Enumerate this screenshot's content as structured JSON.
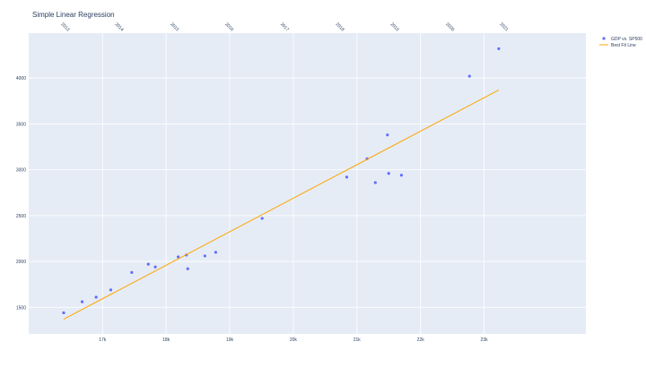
{
  "chart_data": {
    "type": "scatter",
    "title": "Simple Linear Regression",
    "xlabel": "",
    "ylabel": "",
    "x_ticks": [
      "17k",
      "18k",
      "19k",
      "20k",
      "21k",
      "22k",
      "23k"
    ],
    "x_tick_values": [
      17000,
      18000,
      19000,
      20000,
      21000,
      22000,
      23000
    ],
    "y_ticks": [
      "1500",
      "2000",
      "2500",
      "3000",
      "3500",
      "4000"
    ],
    "y_tick_values": [
      1500,
      2000,
      2500,
      3000,
      3500,
      4000
    ],
    "top_axis_ticks": [
      "2013",
      "2014",
      "2015",
      "2016",
      "2017",
      "2018",
      "2019",
      "2020",
      "2021"
    ],
    "top_axis_tick_values": [
      16400,
      17250,
      18120,
      18980,
      19850,
      20720,
      21580,
      22450,
      23300
    ],
    "xlim": [
      15840,
      24600
    ],
    "ylim": [
      1210,
      4490
    ],
    "grid": true,
    "legend_position": "top-right",
    "series": [
      {
        "name": "GDP vs. SP500",
        "type": "scatter",
        "color": "#636efa",
        "x": [
          16390,
          16680,
          16900,
          17130,
          17460,
          17720,
          17830,
          18190,
          18320,
          18340,
          18610,
          18780,
          19510,
          20840,
          21160,
          21290,
          21480,
          21500,
          21700,
          22770,
          23230
        ],
        "y": [
          1440,
          1560,
          1610,
          1690,
          1880,
          1970,
          1940,
          2050,
          2070,
          1920,
          2060,
          2100,
          2470,
          2920,
          3120,
          2860,
          3380,
          2960,
          2940,
          4020,
          4320
        ]
      },
      {
        "name": "Best Fit Line",
        "type": "line",
        "color": "#ffa500",
        "x": [
          16390,
          23230
        ],
        "y": [
          1370,
          3870
        ]
      }
    ]
  }
}
